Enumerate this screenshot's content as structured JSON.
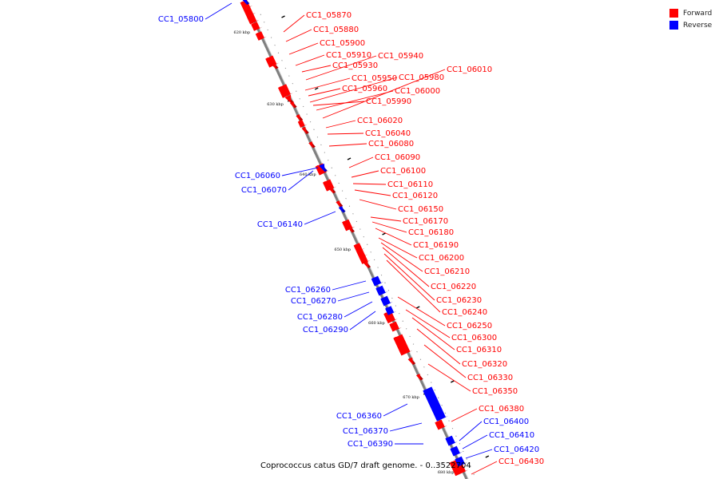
{
  "legend": {
    "forward_label": "Forward",
    "reverse_label": "Reverse",
    "forward_color": "#ff0000",
    "reverse_color": "#0000ff"
  },
  "caption": "Coprococcus catus GD/7 draft genome. - 0..3522704",
  "ticks": [
    "620 kbp",
    "630 kbp",
    "640 kbp",
    "650 kbp",
    "660 kbp",
    "670 kbp",
    "680 kbp"
  ],
  "forward_genes": [
    "CC1_05870",
    "CC1_05880",
    "CC1_05900",
    "CC1_05910",
    "CC1_05930",
    "CC1_05940",
    "CC1_05950",
    "CC1_05960",
    "CC1_05980",
    "CC1_05990",
    "CC1_06000",
    "CC1_06010",
    "CC1_06020",
    "CC1_06040",
    "CC1_06080",
    "CC1_06090",
    "CC1_06100",
    "CC1_06110",
    "CC1_06120",
    "CC1_06150",
    "CC1_06170",
    "CC1_06180",
    "CC1_06190",
    "CC1_06200",
    "CC1_06210",
    "CC1_06220",
    "CC1_06230",
    "CC1_06240",
    "CC1_06250",
    "CC1_06300",
    "CC1_06310",
    "CC1_06320",
    "CC1_06330",
    "CC1_06350",
    "CC1_06380",
    "CC1_06430"
  ],
  "reverse_genes": [
    "CC1_05800",
    "CC1_06060",
    "CC1_06070",
    "CC1_06140",
    "CC1_06260",
    "CC1_06270",
    "CC1_06280",
    "CC1_06290",
    "CC1_06360",
    "CC1_06370",
    "CC1_06390",
    "CC1_06400",
    "CC1_06410",
    "CC1_06420"
  ]
}
